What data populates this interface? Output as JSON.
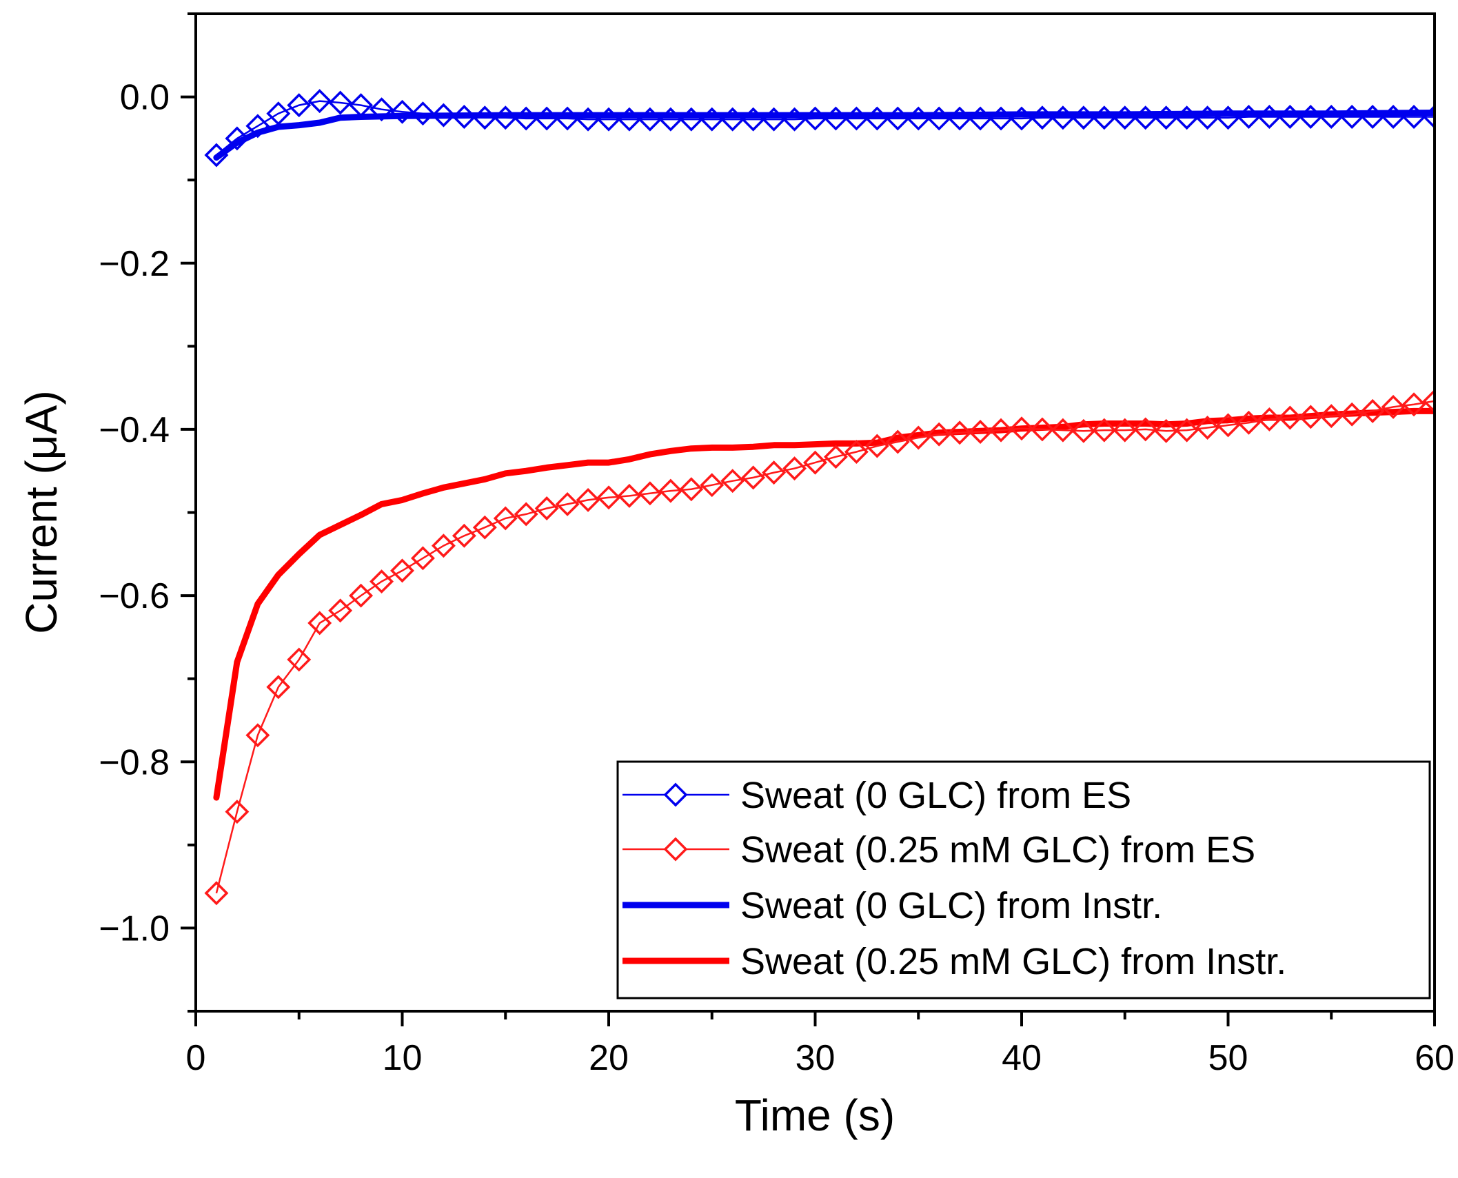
{
  "chart_data": {
    "type": "line",
    "title": "",
    "xlabel": "Time (s)",
    "ylabel": "Current (μA)",
    "xlim": [
      0,
      60
    ],
    "ylim": [
      -1.1,
      0.1
    ],
    "xticks": [
      0,
      10,
      20,
      30,
      40,
      50,
      60
    ],
    "yticks": [
      0.0,
      -0.2,
      -0.4,
      -0.6,
      -0.8,
      -1.0
    ],
    "ytick_labels": [
      "0.0",
      "−0.2",
      "−0.4",
      "−0.6",
      "−0.8",
      "−1.0"
    ],
    "xtick_labels": [
      "0",
      "10",
      "20",
      "30",
      "40",
      "50",
      "60"
    ],
    "grid": false,
    "legend_position": "bottom-right",
    "series": [
      {
        "name": "Sweat (0 GLC) from ES",
        "color": "#0000ee",
        "style": "marker-line",
        "marker": "diamond",
        "x": [
          1,
          2,
          3,
          4,
          5,
          6,
          7,
          8,
          9,
          10,
          11,
          12,
          13,
          14,
          15,
          16,
          17,
          18,
          19,
          20,
          21,
          22,
          23,
          24,
          25,
          26,
          27,
          28,
          29,
          30,
          31,
          32,
          33,
          34,
          35,
          36,
          37,
          38,
          39,
          40,
          41,
          42,
          43,
          44,
          45,
          46,
          47,
          48,
          49,
          50,
          51,
          52,
          53,
          54,
          55,
          56,
          57,
          58,
          59,
          60
        ],
        "values": [
          -0.07,
          -0.05,
          -0.035,
          -0.02,
          -0.01,
          -0.005,
          -0.007,
          -0.01,
          -0.015,
          -0.018,
          -0.02,
          -0.022,
          -0.024,
          -0.025,
          -0.025,
          -0.026,
          -0.026,
          -0.026,
          -0.027,
          -0.027,
          -0.027,
          -0.027,
          -0.027,
          -0.027,
          -0.027,
          -0.027,
          -0.027,
          -0.027,
          -0.027,
          -0.026,
          -0.026,
          -0.026,
          -0.026,
          -0.026,
          -0.026,
          -0.026,
          -0.026,
          -0.026,
          -0.026,
          -0.026,
          -0.025,
          -0.025,
          -0.025,
          -0.025,
          -0.025,
          -0.025,
          -0.025,
          -0.025,
          -0.025,
          -0.025,
          -0.024,
          -0.024,
          -0.024,
          -0.024,
          -0.024,
          -0.024,
          -0.024,
          -0.024,
          -0.024,
          -0.024
        ]
      },
      {
        "name": "Sweat (0.25 mM GLC) from ES",
        "color": "#ff1a1a",
        "style": "marker-line",
        "marker": "diamond",
        "x": [
          1,
          2,
          3,
          4,
          5,
          6,
          7,
          8,
          9,
          10,
          11,
          12,
          13,
          14,
          15,
          16,
          17,
          18,
          19,
          20,
          21,
          22,
          23,
          24,
          25,
          26,
          27,
          28,
          29,
          30,
          31,
          32,
          33,
          34,
          35,
          36,
          37,
          38,
          39,
          40,
          41,
          42,
          43,
          44,
          45,
          46,
          47,
          48,
          49,
          50,
          51,
          52,
          53,
          54,
          55,
          56,
          57,
          58,
          59,
          60
        ],
        "values": [
          -0.958,
          -0.86,
          -0.768,
          -0.71,
          -0.677,
          -0.633,
          -0.618,
          -0.6,
          -0.583,
          -0.57,
          -0.555,
          -0.54,
          -0.528,
          -0.518,
          -0.507,
          -0.502,
          -0.495,
          -0.49,
          -0.485,
          -0.482,
          -0.48,
          -0.477,
          -0.474,
          -0.472,
          -0.467,
          -0.462,
          -0.458,
          -0.452,
          -0.447,
          -0.44,
          -0.433,
          -0.427,
          -0.42,
          -0.415,
          -0.41,
          -0.406,
          -0.404,
          -0.403,
          -0.401,
          -0.399,
          -0.4,
          -0.401,
          -0.402,
          -0.401,
          -0.401,
          -0.4,
          -0.402,
          -0.401,
          -0.398,
          -0.395,
          -0.392,
          -0.388,
          -0.386,
          -0.385,
          -0.384,
          -0.382,
          -0.378,
          -0.373,
          -0.37,
          -0.366
        ]
      },
      {
        "name": "Sweat (0 GLC) from Instr.",
        "color": "#0000ee",
        "style": "thick-line",
        "marker": "none",
        "x": [
          1,
          2,
          3,
          4,
          5,
          6,
          7,
          8,
          10,
          15,
          20,
          25,
          30,
          35,
          40,
          45,
          50,
          55,
          60
        ],
        "values": [
          -0.073,
          -0.055,
          -0.043,
          -0.036,
          -0.034,
          -0.031,
          -0.025,
          -0.024,
          -0.023,
          -0.022,
          -0.022,
          -0.022,
          -0.022,
          -0.022,
          -0.021,
          -0.021,
          -0.02,
          -0.02,
          -0.019
        ]
      },
      {
        "name": "Sweat (0.25 mM GLC) from Instr.",
        "color": "#ff0000",
        "style": "thick-line",
        "marker": "none",
        "x": [
          1,
          2,
          3,
          4,
          5,
          6,
          7,
          8,
          9,
          10,
          11,
          12,
          13,
          14,
          15,
          16,
          17,
          18,
          19,
          20,
          21,
          22,
          23,
          24,
          25,
          26,
          27,
          28,
          29,
          30,
          31,
          32,
          33,
          34,
          35,
          36,
          37,
          38,
          39,
          40,
          41,
          42,
          43,
          44,
          45,
          46,
          47,
          48,
          49,
          50,
          51,
          52,
          53,
          54,
          55,
          56,
          57,
          58,
          59,
          60
        ],
        "values": [
          -0.843,
          -0.68,
          -0.61,
          -0.575,
          -0.55,
          -0.527,
          -0.515,
          -0.503,
          -0.49,
          -0.485,
          -0.477,
          -0.47,
          -0.465,
          -0.46,
          -0.453,
          -0.45,
          -0.446,
          -0.443,
          -0.44,
          -0.44,
          -0.436,
          -0.43,
          -0.426,
          -0.423,
          -0.422,
          -0.422,
          -0.421,
          -0.419,
          -0.419,
          -0.418,
          -0.417,
          -0.417,
          -0.416,
          -0.41,
          -0.407,
          -0.404,
          -0.403,
          -0.402,
          -0.401,
          -0.399,
          -0.398,
          -0.397,
          -0.394,
          -0.393,
          -0.393,
          -0.393,
          -0.394,
          -0.393,
          -0.39,
          -0.389,
          -0.387,
          -0.386,
          -0.386,
          -0.384,
          -0.382,
          -0.381,
          -0.38,
          -0.379,
          -0.378,
          -0.378
        ]
      }
    ]
  }
}
